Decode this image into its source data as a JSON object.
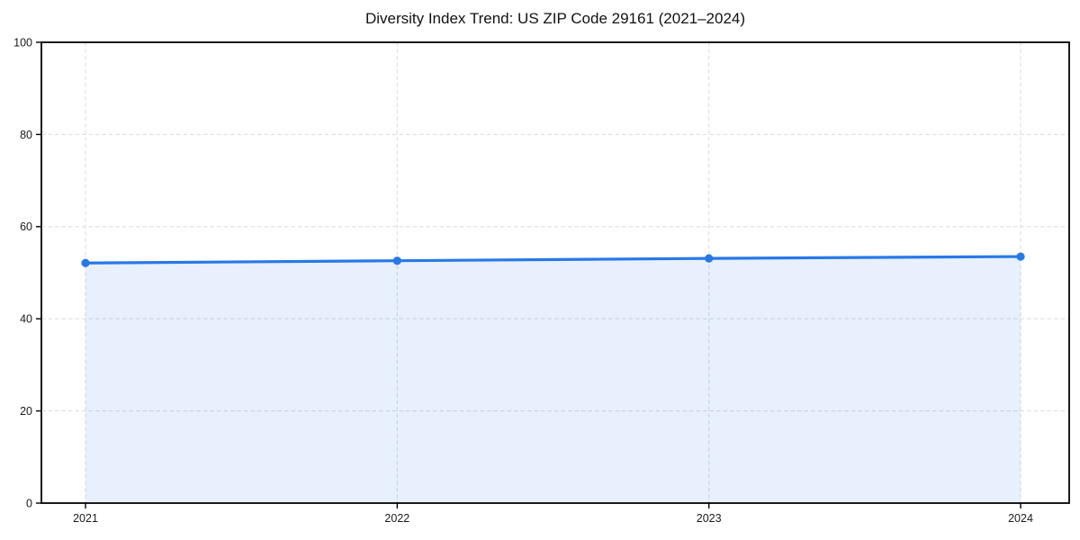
{
  "chart_data": {
    "type": "line",
    "title": "Diversity Index Trend: US ZIP Code 29161 (2021–2024)",
    "x": [
      "2021",
      "2022",
      "2023",
      "2024"
    ],
    "series": [
      {
        "name": "Diversity Index",
        "values": [
          52.1,
          52.6,
          53.1,
          53.5
        ]
      }
    ],
    "xlabel": "",
    "ylabel": "",
    "ylim": [
      0,
      100
    ],
    "yticks": [
      0,
      20,
      40,
      60,
      80,
      100
    ],
    "grid": "dashed",
    "legend": "none",
    "area_fill": true,
    "colors": {
      "line": "#2878e8",
      "marker": "#2878e8",
      "fill": "rgba(40, 120, 232, 0.11)",
      "grid": "#dedede",
      "axis": "#000000",
      "tick_text": "#1a1a1a",
      "background": "#ffffff"
    }
  }
}
